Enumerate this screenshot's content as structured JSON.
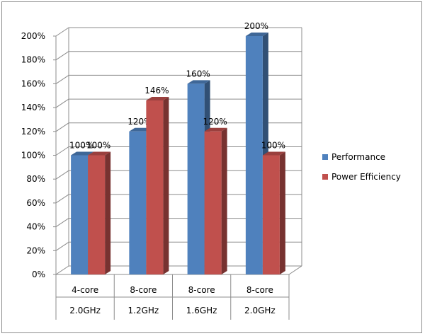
{
  "chart_data": {
    "type": "bar",
    "style": "3d-clustered-column",
    "categories": [
      {
        "line1": "4-core",
        "line2": "2.0GHz"
      },
      {
        "line1": "8-core",
        "line2": "1.2GHz"
      },
      {
        "line1": "8-core",
        "line2": "1.6GHz"
      },
      {
        "line1": "8-core",
        "line2": "2.0GHz"
      }
    ],
    "series": [
      {
        "name": "Performance",
        "color": "#4f81bd",
        "values": [
          100,
          120,
          160,
          200
        ],
        "labels": [
          "100%",
          "120%",
          "160%",
          "200%"
        ]
      },
      {
        "name": "Power Efficiency",
        "color": "#c0504d",
        "values": [
          100,
          146,
          120,
          100
        ],
        "labels": [
          "100%",
          "146%",
          "120%",
          "100%"
        ]
      }
    ],
    "y_ticks": [
      "0%",
      "20%",
      "40%",
      "60%",
      "80%",
      "100%",
      "120%",
      "140%",
      "160%",
      "180%",
      "200%"
    ],
    "ylim": [
      0,
      200
    ],
    "title": "",
    "xlabel": "",
    "ylabel": "",
    "grid": true,
    "legend_position": "right"
  }
}
